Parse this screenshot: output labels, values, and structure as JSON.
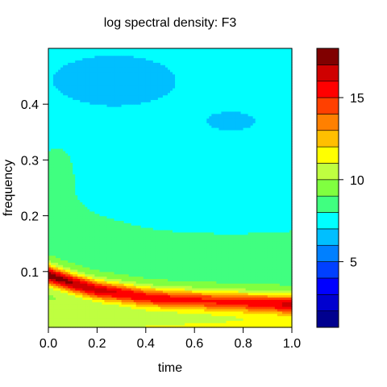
{
  "chart_data": {
    "type": "heatmap",
    "title": "log spectral density: F3",
    "xlabel": "time",
    "ylabel": "frequency",
    "xlim": [
      0.0,
      1.0
    ],
    "ylim": [
      0.0,
      0.5
    ],
    "x_ticks": [
      "0.0",
      "0.2",
      "0.4",
      "0.6",
      "0.8",
      "1.0"
    ],
    "y_ticks": [
      "0.1",
      "0.2",
      "0.3",
      "0.4"
    ],
    "colorbar": {
      "breaks": [
        1,
        2,
        3,
        4,
        5,
        6,
        7,
        8,
        9,
        10,
        11,
        12,
        13,
        14,
        15,
        16,
        17,
        18
      ],
      "tick_labels": [
        "5",
        "10",
        "15"
      ],
      "colors": [
        "#00008F",
        "#0000CF",
        "#0000FF",
        "#0040FF",
        "#0080FF",
        "#00BFFF",
        "#00FFFF",
        "#40FF80",
        "#80FF40",
        "#BFFF40",
        "#FFFF00",
        "#FFBF00",
        "#FF8000",
        "#FF4000",
        "#FF0000",
        "#CF0000",
        "#800000"
      ]
    },
    "grid": false,
    "ridge": {
      "description": "dominant frequency band over time",
      "time": [
        0.0,
        0.1,
        0.2,
        0.3,
        0.4,
        0.5,
        0.6,
        0.7,
        0.8,
        0.9,
        1.0
      ],
      "frequency": [
        0.095,
        0.08,
        0.068,
        0.062,
        0.055,
        0.052,
        0.05,
        0.048,
        0.046,
        0.044,
        0.042
      ],
      "peak_log_density": [
        15.5,
        14.8,
        14.2,
        13.8,
        13.5,
        13.2,
        13.0,
        13.0,
        13.2,
        13.6,
        14.0
      ]
    }
  }
}
